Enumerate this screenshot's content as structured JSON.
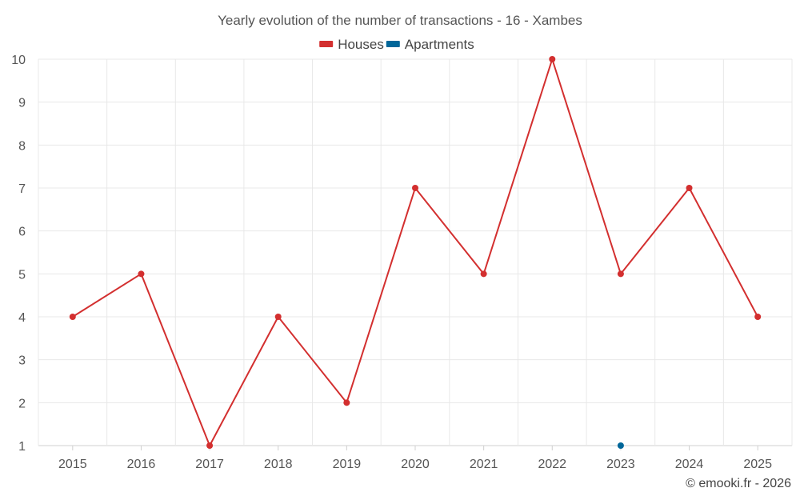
{
  "chart_data": {
    "type": "line",
    "title": "Yearly evolution of the number of transactions - 16 - Xambes",
    "categories": [
      "2015",
      "2016",
      "2017",
      "2018",
      "2019",
      "2020",
      "2021",
      "2022",
      "2023",
      "2024",
      "2025"
    ],
    "ylim": [
      1,
      10
    ],
    "yticks": [
      "1",
      "2",
      "3",
      "4",
      "5",
      "6",
      "7",
      "8",
      "9",
      "10"
    ],
    "grid": true,
    "legend_position": "top-center",
    "series": [
      {
        "name": "Houses",
        "color": "#d32f2f",
        "values": [
          4,
          5,
          1,
          4,
          2,
          7,
          5,
          10,
          5,
          7,
          4
        ]
      },
      {
        "name": "Apartments",
        "color": "#006699",
        "values": [
          null,
          null,
          null,
          null,
          null,
          null,
          null,
          null,
          1,
          null,
          null
        ]
      }
    ],
    "xlabel": "",
    "ylabel": ""
  },
  "credit": "© emooki.fr - 2026"
}
